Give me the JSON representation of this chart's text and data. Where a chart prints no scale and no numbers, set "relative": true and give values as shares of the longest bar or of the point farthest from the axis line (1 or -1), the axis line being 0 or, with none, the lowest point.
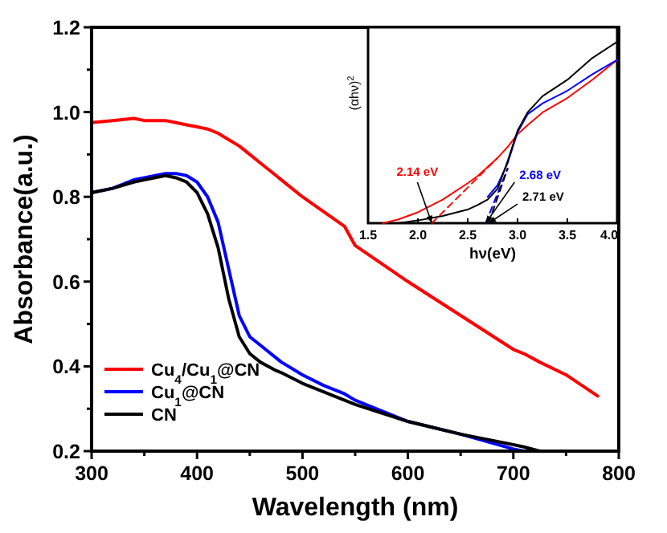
{
  "chart_data": [
    {
      "type": "line",
      "xlabel": "Wavelength (nm)",
      "ylabel": "Absorbance(a.u.)",
      "xlim": [
        300,
        800
      ],
      "ylim": [
        0.2,
        1.2
      ],
      "xticks": [
        300,
        {
          "value": 350,
          "label": null
        },
        400,
        {
          "value": 450,
          "label": null
        },
        500,
        {
          "value": 550,
          "label": null
        },
        600,
        {
          "value": 650,
          "label": null
        },
        700,
        {
          "value": 750,
          "label": null
        },
        800
      ],
      "yticks": [
        {
          "value": 0.2,
          "label": "0.2"
        },
        {
          "value": 0.3,
          "label": null
        },
        {
          "value": 0.4,
          "label": "0.4"
        },
        {
          "value": 0.5,
          "label": null
        },
        {
          "value": 0.6,
          "label": "0.6"
        },
        {
          "value": 0.7,
          "label": null
        },
        {
          "value": 0.8,
          "label": "0.8"
        },
        {
          "value": 0.9,
          "label": null
        },
        {
          "value": 1.0,
          "label": "1.0"
        },
        {
          "value": 1.1,
          "label": null
        },
        {
          "value": 1.2,
          "label": "1.2"
        }
      ],
      "legend": "bottom left",
      "grid": false,
      "line_style": "solid",
      "marker": "none",
      "x": [
        300,
        320,
        340,
        350,
        370,
        380,
        390,
        400,
        410,
        420,
        430,
        440,
        450,
        460,
        475,
        480,
        500,
        520,
        540,
        550,
        600,
        650,
        700,
        710,
        725,
        750,
        780
      ],
      "series": [
        {
          "name": "Cu$_{4}$/Cu$_{1}$@CN",
          "color": "#ff0000",
          "values": [
            0.975,
            0.98,
            0.985,
            0.98,
            0.98,
            0.975,
            0.97,
            0.965,
            0.96,
            0.95,
            0.935,
            0.92,
            0.9,
            0.88,
            0.85,
            0.84,
            0.8,
            0.765,
            0.73,
            0.685,
            0.6,
            0.52,
            0.44,
            0.43,
            0.41,
            0.38,
            0.33
          ]
        },
        {
          "name": "Cu$_{1}$@CN",
          "color": "#0000ff",
          "values": [
            0.81,
            0.82,
            0.84,
            0.845,
            0.855,
            0.855,
            0.85,
            0.835,
            0.8,
            0.74,
            0.63,
            0.52,
            0.47,
            0.45,
            0.42,
            0.41,
            0.38,
            0.355,
            0.335,
            0.32,
            0.27,
            0.24,
            0.205,
            0.2,
            null,
            null,
            null
          ]
        },
        {
          "name": "CN",
          "color": "#000000",
          "values": [
            0.81,
            0.82,
            0.835,
            0.84,
            0.85,
            0.845,
            0.835,
            0.81,
            0.76,
            0.68,
            0.56,
            0.47,
            0.43,
            0.41,
            0.39,
            0.385,
            0.36,
            0.34,
            0.32,
            0.31,
            0.27,
            0.24,
            0.215,
            0.21,
            0.2,
            null,
            null
          ]
        }
      ]
    },
    {
      "type": "line",
      "relative": true,
      "xlabel": "hν(eV)",
      "ylabel": "(αhν)$^{2}$",
      "xlim": [
        1.5,
        4.0
      ],
      "xticks": [
        1.5,
        {
          "value": 2.0,
          "label": "2.0"
        },
        2.5,
        {
          "value": 3.0,
          "label": "3.0"
        },
        3.5,
        {
          "value": 4.0,
          "label": "4.0"
        }
      ],
      "line_style": "solid",
      "marker": "none",
      "x": [
        1.65,
        1.8,
        2.0,
        2.25,
        2.5,
        2.6,
        2.7,
        2.8,
        2.9,
        3.0,
        3.1,
        3.25,
        3.5,
        3.75,
        4.0
      ],
      "series": [
        {
          "color": "#ff0000",
          "values": [
            0,
            0.02,
            0.06,
            0.13,
            0.22,
            0.26,
            0.31,
            0.36,
            0.42,
            0.49,
            0.54,
            0.61,
            0.69,
            0.79,
            0.9
          ]
        },
        {
          "color": "#0000ff",
          "values": [
            null,
            null,
            null,
            null,
            null,
            null,
            0.145,
            0.21,
            0.33,
            0.5,
            0.6,
            0.66,
            0.73,
            0.82,
            0.9
          ]
        },
        {
          "color": "#000000",
          "values": [
            null,
            0,
            0.015,
            0.04,
            0.075,
            0.1,
            0.13,
            0.19,
            0.34,
            0.51,
            0.61,
            0.7,
            0.79,
            0.91,
            1.0
          ]
        },
        {
          "type": "line",
          "line_style": "dashed",
          "color": "#ff0000",
          "x": [
            2.14,
            2.8
          ],
          "values": [
            0,
            0.36
          ]
        },
        {
          "type": "line",
          "line_style": "dashed",
          "color": "#0000ff",
          "x": [
            2.68,
            2.9
          ],
          "values": [
            0,
            0.3
          ]
        },
        {
          "type": "line",
          "line_style": "dashed",
          "color": "#000000",
          "x": [
            2.71,
            2.9
          ],
          "values": [
            0,
            0.3
          ]
        }
      ],
      "annotations": [
        {
          "text": "2.14 eV",
          "x": 2.14,
          "y": 0
        },
        {
          "text": "2.68 eV",
          "x": 2.68,
          "y": 0
        },
        {
          "text": "2.71 eV",
          "x": 2.71,
          "y": 0
        }
      ]
    }
  ]
}
